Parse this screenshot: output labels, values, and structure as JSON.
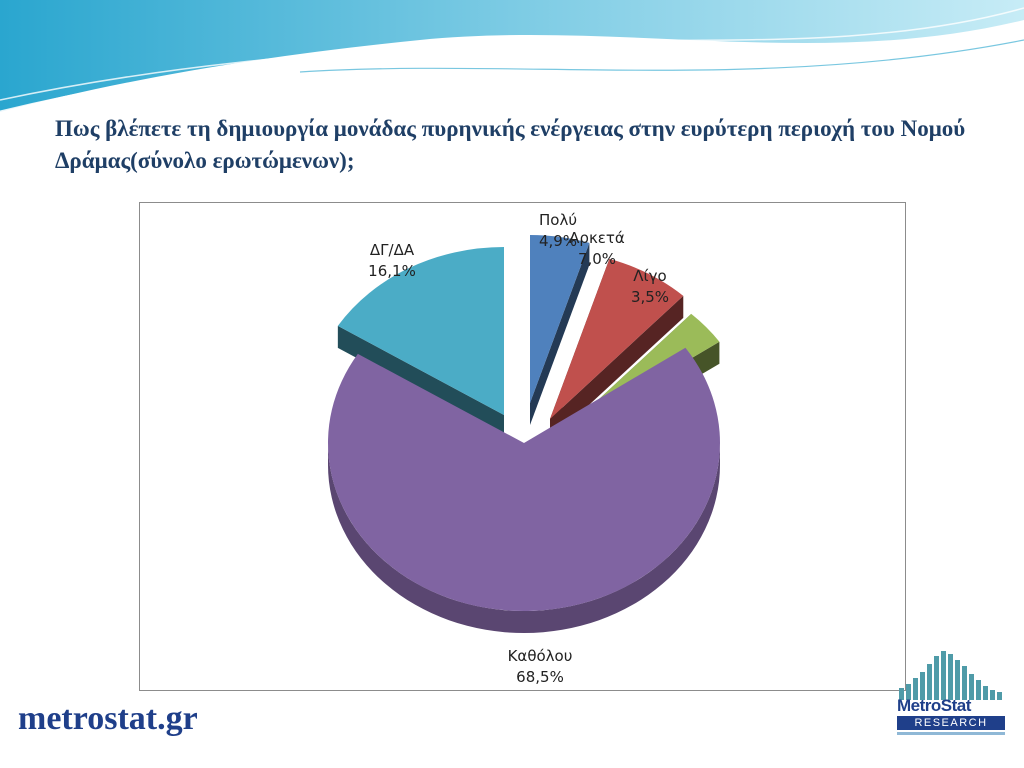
{
  "slide": {
    "title": "Πως βλέπετε τη δημιουργία μονάδας πυρηνικής ενέργειας στην ευρύτερη περιοχή του Νομού Δράμας(σύνολο ερωτώμενων);",
    "brand": "metrostat.gr",
    "logo": {
      "main": "MetroStat",
      "sub": "RESEARCH"
    }
  },
  "chart_data": {
    "type": "pie",
    "style": "3d-exploded",
    "categories": [
      "Πολύ",
      "Αρκετά",
      "Λίγο",
      "Καθόλου",
      "ΔΓ/ΔΑ"
    ],
    "values": [
      4.9,
      7.0,
      3.5,
      68.5,
      16.1
    ],
    "value_labels": [
      "4,9%",
      "7,0%",
      "3,5%",
      "68,5%",
      "16,1%"
    ],
    "colors": [
      "#4f81bd",
      "#c0504d",
      "#9bbb59",
      "#8064a2",
      "#4bacc6"
    ],
    "title": "",
    "legend": "none"
  }
}
